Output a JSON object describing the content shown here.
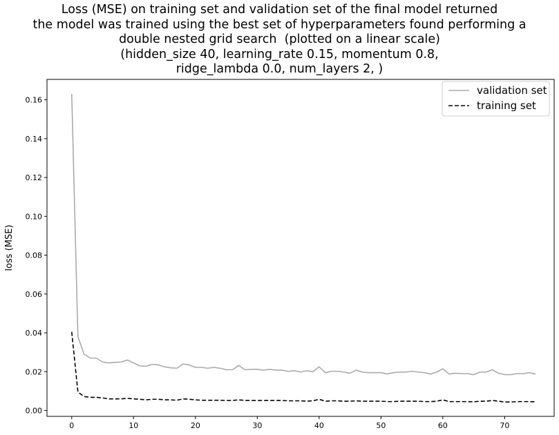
{
  "chart_data": {
    "type": "line",
    "title_lines": [
      "Loss (MSE) on training set and validation set of the final model returned",
      "the model was trained using the best set of hyperparameters found performing a",
      "double nested grid search  (plotted on a linear scale)",
      "(hidden_size 40, learning_rate 0.15, momentum 0.8,",
      "ridge_lambda 0.0, num_layers 2, )"
    ],
    "xlabel": "",
    "ylabel": "loss (MSE)",
    "xlim": [
      -4,
      78
    ],
    "ylim": [
      -0.003,
      0.1705
    ],
    "x_ticks": [
      0,
      10,
      20,
      30,
      40,
      50,
      60,
      70
    ],
    "x_tick_labels": [
      "0",
      "10",
      "20",
      "30",
      "40",
      "50",
      "60",
      "70"
    ],
    "y_ticks": [
      0.0,
      0.02,
      0.04,
      0.06,
      0.08,
      0.1,
      0.12,
      0.14,
      0.16
    ],
    "y_tick_labels": [
      "0.00",
      "0.02",
      "0.04",
      "0.06",
      "0.08",
      "0.10",
      "0.12",
      "0.14",
      "0.16"
    ],
    "grid": false,
    "legend_position": "top-right",
    "x": [
      0,
      1,
      2,
      3,
      4,
      5,
      6,
      7,
      8,
      9,
      10,
      11,
      12,
      13,
      14,
      15,
      16,
      17,
      18,
      19,
      20,
      21,
      22,
      23,
      24,
      25,
      26,
      27,
      28,
      29,
      30,
      31,
      32,
      33,
      34,
      35,
      36,
      37,
      38,
      39,
      40,
      41,
      42,
      43,
      44,
      45,
      46,
      47,
      48,
      49,
      50,
      51,
      52,
      53,
      54,
      55,
      56,
      57,
      58,
      59,
      60,
      61,
      62,
      63,
      64,
      65,
      66,
      67,
      68,
      69,
      70,
      71,
      72,
      73,
      74,
      75
    ],
    "series": [
      {
        "name": "validation set",
        "color": "#aaaaaa",
        "style": "solid",
        "values": [
          0.163,
          0.038,
          0.029,
          0.027,
          0.027,
          0.025,
          0.0245,
          0.0248,
          0.025,
          0.026,
          0.0245,
          0.023,
          0.0228,
          0.0238,
          0.0235,
          0.0225,
          0.022,
          0.0218,
          0.024,
          0.0235,
          0.0222,
          0.0222,
          0.0218,
          0.0222,
          0.0218,
          0.021,
          0.021,
          0.0232,
          0.021,
          0.0212,
          0.0212,
          0.0208,
          0.0212,
          0.0208,
          0.0208,
          0.0202,
          0.0205,
          0.0198,
          0.0205,
          0.02,
          0.0225,
          0.0195,
          0.0202,
          0.0202,
          0.0198,
          0.0192,
          0.0208,
          0.0198,
          0.0195,
          0.0195,
          0.0195,
          0.0188,
          0.0195,
          0.0198,
          0.0198,
          0.0202,
          0.0198,
          0.0195,
          0.0188,
          0.0198,
          0.0215,
          0.0188,
          0.0192,
          0.019,
          0.019,
          0.0185,
          0.0198,
          0.0198,
          0.021,
          0.0192,
          0.0185,
          0.0185,
          0.019,
          0.019,
          0.0195,
          0.0188
        ]
      },
      {
        "name": "training set",
        "color": "#000000",
        "style": "dashed",
        "values": [
          0.0405,
          0.0095,
          0.0072,
          0.0068,
          0.0068,
          0.0065,
          0.006,
          0.006,
          0.006,
          0.0063,
          0.006,
          0.0058,
          0.0055,
          0.0058,
          0.0058,
          0.0055,
          0.0055,
          0.0053,
          0.006,
          0.0058,
          0.0055,
          0.0053,
          0.0053,
          0.0053,
          0.0053,
          0.0052,
          0.0052,
          0.0055,
          0.0052,
          0.0052,
          0.0052,
          0.0052,
          0.0052,
          0.0052,
          0.0052,
          0.005,
          0.005,
          0.005,
          0.0048,
          0.005,
          0.0058,
          0.0048,
          0.005,
          0.005,
          0.0048,
          0.0048,
          0.005,
          0.0048,
          0.0048,
          0.0048,
          0.0048,
          0.0046,
          0.0046,
          0.0048,
          0.0048,
          0.0048,
          0.0048,
          0.0046,
          0.0046,
          0.0048,
          0.0055,
          0.0046,
          0.0046,
          0.0046,
          0.0046,
          0.0045,
          0.0048,
          0.0048,
          0.0052,
          0.0048,
          0.0044,
          0.0044,
          0.0046,
          0.0046,
          0.0046,
          0.0045
        ]
      }
    ]
  }
}
